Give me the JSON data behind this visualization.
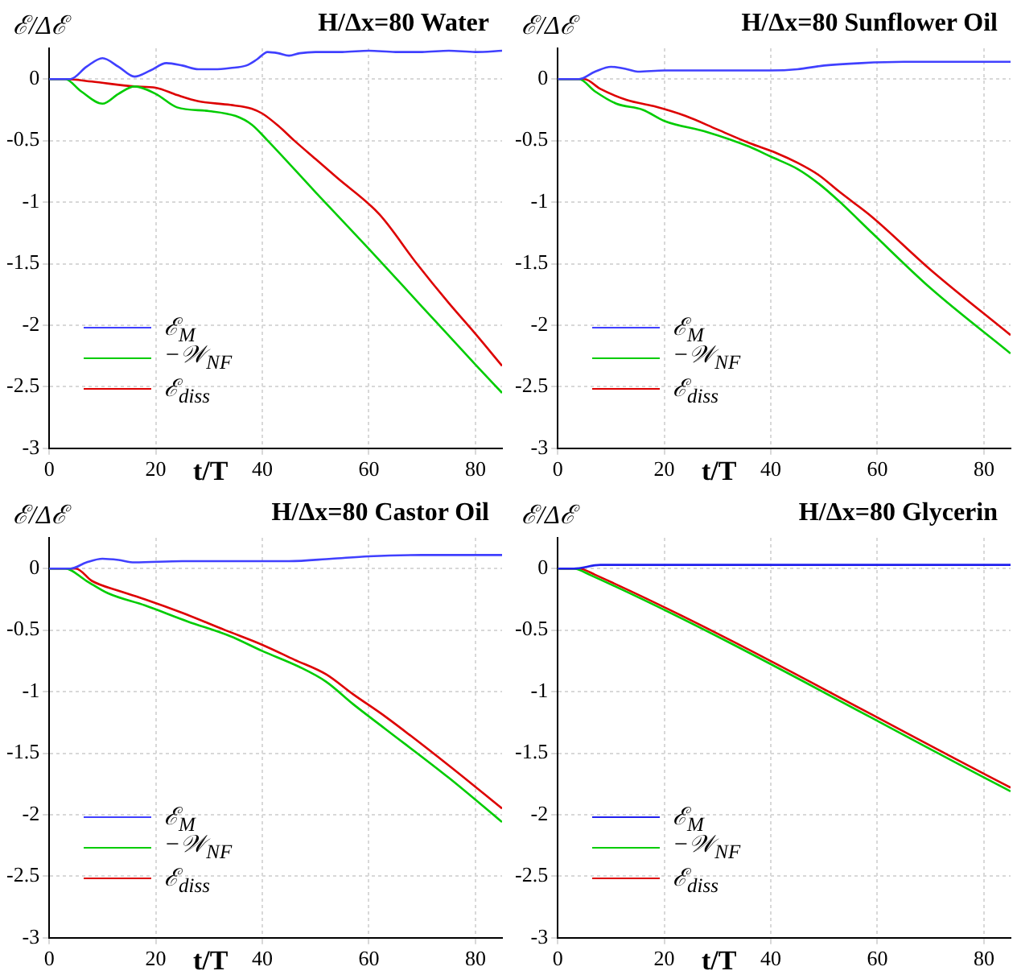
{
  "chart_data": [
    {
      "type": "line",
      "title": "H/Δx=80 Water",
      "xlabel": "t/T",
      "ylabel": "ℰ/Δℰ",
      "xlim": [
        0,
        85
      ],
      "xticks": [
        0,
        20,
        40,
        60,
        80
      ],
      "ylim": [
        -3,
        0.25
      ],
      "yticks": [
        -3,
        -2.5,
        -2,
        -1.5,
        -1,
        -0.5,
        0
      ],
      "grid": true,
      "legend": "bottom left",
      "series": [
        {
          "name": "ℰ$_{M}$",
          "color": "#4040ff",
          "x": [
            0,
            4,
            7,
            10,
            13,
            16,
            19,
            22,
            25,
            28,
            31,
            34,
            37,
            39,
            41,
            43,
            45,
            47,
            50,
            55,
            60,
            65,
            70,
            75,
            80,
            85
          ],
          "values": [
            0,
            0,
            0.1,
            0.17,
            0.1,
            0.02,
            0.07,
            0.13,
            0.11,
            0.08,
            0.08,
            0.09,
            0.11,
            0.16,
            0.22,
            0.21,
            0.19,
            0.21,
            0.22,
            0.22,
            0.23,
            0.22,
            0.22,
            0.23,
            0.22,
            0.23
          ]
        },
        {
          "name": "−𝒲$_{NF}$",
          "color": "#00cc00",
          "x": [
            0,
            3,
            6,
            10,
            13,
            16,
            20,
            24,
            30,
            35,
            38,
            41,
            50,
            60,
            70,
            80,
            85
          ],
          "values": [
            0,
            0,
            -0.1,
            -0.2,
            -0.12,
            -0.06,
            -0.12,
            -0.23,
            -0.26,
            -0.3,
            -0.37,
            -0.5,
            -0.92,
            -1.38,
            -1.85,
            -2.32,
            -2.55
          ]
        },
        {
          "name": "ℰ$_{diss}$",
          "color": "#dd0000",
          "x": [
            0,
            3,
            8,
            16,
            20,
            24,
            28,
            34,
            38,
            40,
            43,
            46,
            50,
            54,
            62,
            69,
            75,
            80,
            85
          ],
          "values": [
            0,
            0,
            -0.02,
            -0.06,
            -0.07,
            -0.13,
            -0.18,
            -0.21,
            -0.24,
            -0.28,
            -0.38,
            -0.5,
            -0.65,
            -0.8,
            -1.1,
            -1.5,
            -1.82,
            -2.07,
            -2.33
          ]
        }
      ]
    },
    {
      "type": "line",
      "title": "H/Δx=80 Sunflower Oil",
      "xlabel": "t/T",
      "ylabel": "ℰ/Δℰ",
      "xlim": [
        0,
        85
      ],
      "xticks": [
        0,
        20,
        40,
        60,
        80
      ],
      "ylim": [
        -3,
        0.25
      ],
      "yticks": [
        -3,
        -2.5,
        -2,
        -1.5,
        -1,
        -0.5,
        0
      ],
      "grid": true,
      "legend": "bottom left",
      "series": [
        {
          "name": "ℰ$_{M}$",
          "color": "#4040ff",
          "x": [
            0,
            4,
            7,
            10,
            13,
            15,
            20,
            30,
            40,
            45,
            50,
            57,
            65,
            75,
            85
          ],
          "values": [
            0,
            0,
            0.06,
            0.1,
            0.08,
            0.06,
            0.07,
            0.07,
            0.07,
            0.08,
            0.11,
            0.13,
            0.14,
            0.14,
            0.14
          ]
        },
        {
          "name": "−𝒲$_{NF}$",
          "color": "#00cc00",
          "x": [
            0,
            4,
            7,
            11,
            16,
            20,
            28,
            36,
            40,
            45,
            49,
            53,
            59,
            70,
            85
          ],
          "values": [
            0,
            0,
            -0.1,
            -0.2,
            -0.25,
            -0.34,
            -0.43,
            -0.55,
            -0.63,
            -0.73,
            -0.85,
            -1,
            -1.25,
            -1.7,
            -2.23
          ]
        },
        {
          "name": "ℰ$_{diss}$",
          "color": "#dd0000",
          "x": [
            0,
            5,
            8,
            13,
            18,
            24,
            30,
            36,
            41,
            45,
            49,
            53,
            59,
            70,
            85
          ],
          "values": [
            0,
            0,
            -0.08,
            -0.17,
            -0.22,
            -0.3,
            -0.41,
            -0.52,
            -0.6,
            -0.68,
            -0.78,
            -0.92,
            -1.12,
            -1.55,
            -2.08
          ]
        }
      ]
    },
    {
      "type": "line",
      "title": "H/Δx=80 Castor Oil",
      "xlabel": "t/T",
      "ylabel": "ℰ/Δℰ",
      "xlim": [
        0,
        85
      ],
      "xticks": [
        0,
        20,
        40,
        60,
        80
      ],
      "ylim": [
        -3,
        0.25
      ],
      "yticks": [
        -3,
        -2.5,
        -2,
        -1.5,
        -1,
        -0.5,
        0
      ],
      "grid": true,
      "legend": "bottom left",
      "series": [
        {
          "name": "ℰ$_{M}$",
          "color": "#4040ff",
          "x": [
            0,
            4,
            7,
            10,
            13,
            16,
            25,
            35,
            45,
            53,
            60,
            70,
            85
          ],
          "values": [
            0,
            0,
            0.05,
            0.08,
            0.07,
            0.05,
            0.06,
            0.06,
            0.06,
            0.08,
            0.1,
            0.11,
            0.11
          ]
        },
        {
          "name": "−𝒲$_{NF}$",
          "color": "#00cc00",
          "x": [
            0,
            3,
            7,
            11,
            18,
            26,
            34,
            40,
            47,
            52,
            57,
            63,
            75,
            85
          ],
          "values": [
            0,
            0,
            -0.1,
            -0.2,
            -0.3,
            -0.43,
            -0.55,
            -0.67,
            -0.8,
            -0.92,
            -1.1,
            -1.3,
            -1.7,
            -2.06
          ]
        },
        {
          "name": "ℰ$_{diss}$",
          "color": "#dd0000",
          "x": [
            0,
            5,
            8,
            13,
            18,
            25,
            33,
            40,
            46,
            52,
            57,
            63,
            75,
            85
          ],
          "values": [
            0,
            0,
            -0.1,
            -0.18,
            -0.25,
            -0.36,
            -0.5,
            -0.62,
            -0.74,
            -0.86,
            -1.02,
            -1.2,
            -1.6,
            -1.95
          ]
        }
      ]
    },
    {
      "type": "line",
      "title": "H/Δx=80 Glycerin",
      "xlabel": "t/T",
      "ylabel": "ℰ/Δℰ",
      "xlim": [
        0,
        85
      ],
      "xticks": [
        0,
        20,
        40,
        60,
        80
      ],
      "ylim": [
        -3,
        0.25
      ],
      "yticks": [
        -3,
        -2.5,
        -2,
        -1.5,
        -1,
        -0.5,
        0
      ],
      "grid": true,
      "legend": "bottom left",
      "series": [
        {
          "name": "ℰ$_{M}$",
          "color": "#2020ee",
          "x": [
            0,
            3,
            8,
            85
          ],
          "values": [
            0,
            0,
            0.03,
            0.03
          ]
        },
        {
          "name": "−𝒲$_{NF}$",
          "color": "#00cc00",
          "x": [
            0,
            3,
            6,
            85
          ],
          "values": [
            0,
            0,
            -0.05,
            -1.81
          ]
        },
        {
          "name": "ℰ$_{diss}$",
          "color": "#dd0000",
          "x": [
            0,
            4,
            7,
            85
          ],
          "values": [
            0,
            0,
            -0.05,
            -1.78
          ]
        }
      ]
    }
  ]
}
